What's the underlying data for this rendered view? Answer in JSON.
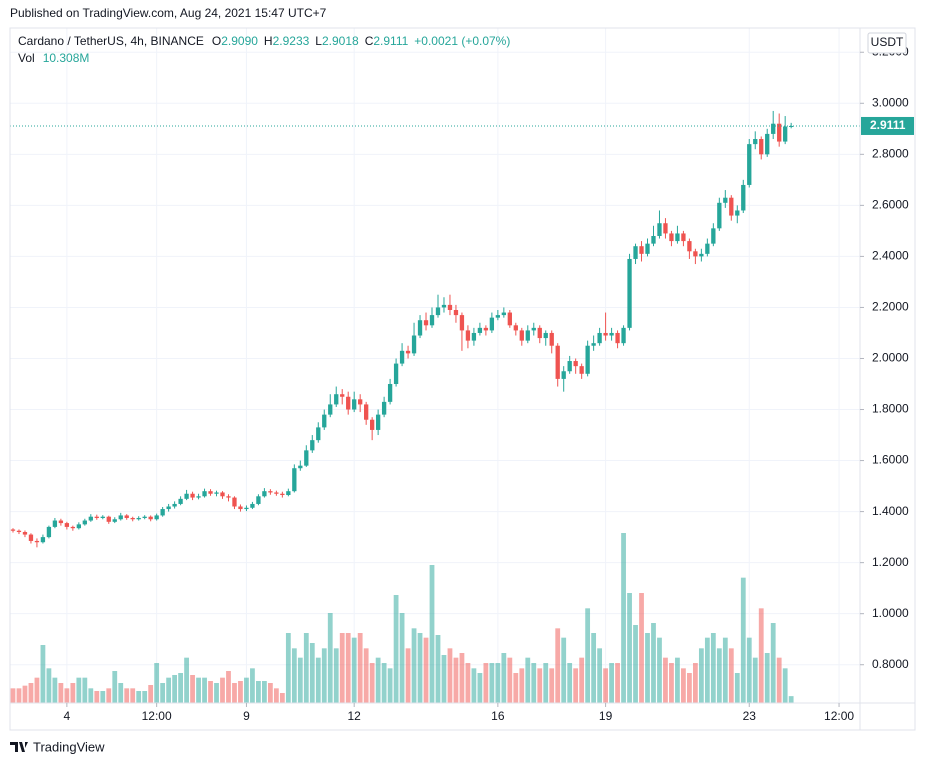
{
  "published": "Published on TradingView.com, Aug 24, 2021 15:47 UTC+7",
  "chart_data": {
    "type": "candlestick",
    "symbol": "Cardano / TetherUS, 4h, BINANCE",
    "ohlc_labels": [
      {
        "label": "O",
        "value": "2.9090"
      },
      {
        "label": "H",
        "value": "2.9233"
      },
      {
        "label": "L",
        "value": "2.9018"
      },
      {
        "label": "C",
        "value": "2.9111"
      }
    ],
    "change": "+0.0021 (+0.07%)",
    "volume_label": "Vol",
    "volume_value": "10.308M",
    "currency": "USDT",
    "open": [
      1.33,
      1.325,
      1.32,
      1.31,
      1.285,
      1.28,
      1.3,
      1.34,
      1.365,
      1.355,
      1.34,
      1.335,
      1.35,
      1.365,
      1.38,
      1.375,
      1.38,
      1.36,
      1.37,
      1.385,
      1.375,
      1.37,
      1.375,
      1.38,
      1.37,
      1.385,
      1.41,
      1.42,
      1.43,
      1.45,
      1.47,
      1.455,
      1.46,
      1.48,
      1.47,
      1.475,
      1.46,
      1.455,
      1.42,
      1.41,
      1.415,
      1.43,
      1.46,
      1.48,
      1.475,
      1.47,
      1.465,
      1.48,
      1.57,
      1.58,
      1.64,
      1.68,
      1.73,
      1.78,
      1.82,
      1.86,
      1.85,
      1.8,
      1.84,
      1.82,
      1.76,
      1.72,
      1.78,
      1.83,
      1.9,
      1.98,
      2.03,
      2.02,
      2.09,
      2.15,
      2.13,
      2.17,
      2.2,
      2.21,
      2.19,
      2.17,
      2.11,
      2.07,
      2.1,
      2.12,
      2.11,
      2.16,
      2.17,
      2.18,
      2.13,
      2.11,
      2.07,
      2.11,
      2.12,
      2.08,
      2.1,
      2.05,
      1.92,
      1.95,
      1.99,
      1.97,
      1.94,
      2.05,
      2.06,
      2.1,
      2.09,
      2.1,
      2.06,
      2.12,
      2.39,
      2.44,
      2.41,
      2.45,
      2.48,
      2.53,
      2.49,
      2.46,
      2.49,
      2.46,
      2.42,
      2.4,
      2.41,
      2.45,
      2.51,
      2.61,
      2.63,
      2.56,
      2.58,
      2.68,
      2.84,
      2.86,
      2.8,
      2.88,
      2.92,
      2.85,
      2.909
    ],
    "high": [
      1.335,
      1.33,
      1.326,
      1.315,
      1.295,
      1.31,
      1.345,
      1.375,
      1.372,
      1.36,
      1.345,
      1.358,
      1.372,
      1.39,
      1.388,
      1.386,
      1.384,
      1.378,
      1.395,
      1.39,
      1.38,
      1.382,
      1.386,
      1.385,
      1.392,
      1.418,
      1.43,
      1.44,
      1.46,
      1.485,
      1.478,
      1.47,
      1.49,
      1.488,
      1.482,
      1.48,
      1.468,
      1.46,
      1.428,
      1.424,
      1.438,
      1.468,
      1.492,
      1.488,
      1.482,
      1.478,
      1.49,
      1.585,
      1.6,
      1.66,
      1.7,
      1.75,
      1.8,
      1.86,
      1.89,
      1.88,
      1.87,
      1.87,
      1.86,
      1.83,
      1.77,
      1.8,
      1.85,
      1.92,
      2.0,
      2.06,
      2.05,
      2.14,
      2.17,
      2.18,
      2.2,
      2.25,
      2.24,
      2.25,
      2.21,
      2.18,
      2.13,
      2.12,
      2.14,
      2.13,
      2.18,
      2.19,
      2.2,
      2.19,
      2.14,
      2.12,
      2.13,
      2.14,
      2.13,
      2.11,
      2.11,
      2.06,
      1.97,
      2.01,
      2.0,
      1.98,
      2.07,
      2.09,
      2.12,
      2.18,
      2.12,
      2.11,
      2.13,
      2.41,
      2.45,
      2.46,
      2.47,
      2.52,
      2.58,
      2.55,
      2.5,
      2.52,
      2.5,
      2.47,
      2.43,
      2.43,
      2.47,
      2.53,
      2.63,
      2.66,
      2.64,
      2.6,
      2.7,
      2.86,
      2.89,
      2.87,
      2.9,
      2.97,
      2.96,
      2.95,
      2.9233
    ],
    "low": [
      1.318,
      1.312,
      1.3,
      1.275,
      1.26,
      1.275,
      1.295,
      1.335,
      1.345,
      1.33,
      1.325,
      1.33,
      1.345,
      1.36,
      1.368,
      1.37,
      1.352,
      1.355,
      1.365,
      1.368,
      1.362,
      1.365,
      1.37,
      1.362,
      1.365,
      1.38,
      1.4,
      1.412,
      1.425,
      1.445,
      1.445,
      1.448,
      1.455,
      1.462,
      1.46,
      1.45,
      1.44,
      1.41,
      1.4,
      1.402,
      1.41,
      1.425,
      1.455,
      1.466,
      1.462,
      1.455,
      1.46,
      1.475,
      1.56,
      1.575,
      1.63,
      1.67,
      1.72,
      1.77,
      1.81,
      1.82,
      1.78,
      1.79,
      1.79,
      1.74,
      1.68,
      1.7,
      1.77,
      1.82,
      1.89,
      1.97,
      2.0,
      2.01,
      2.08,
      2.11,
      2.12,
      2.16,
      2.18,
      2.17,
      2.14,
      2.03,
      2.04,
      2.05,
      2.09,
      2.09,
      2.1,
      2.15,
      2.16,
      2.12,
      2.09,
      2.05,
      2.06,
      2.09,
      2.06,
      2.05,
      2.02,
      1.89,
      1.87,
      1.94,
      1.94,
      1.92,
      1.93,
      2.03,
      2.05,
      2.07,
      2.07,
      2.04,
      2.05,
      2.11,
      2.37,
      2.38,
      2.4,
      2.44,
      2.47,
      2.47,
      2.44,
      2.45,
      2.44,
      2.39,
      2.37,
      2.38,
      2.4,
      2.44,
      2.5,
      2.59,
      2.54,
      2.53,
      2.57,
      2.67,
      2.82,
      2.78,
      2.79,
      2.86,
      2.83,
      2.84,
      2.9018
    ],
    "close": [
      1.325,
      1.32,
      1.31,
      1.285,
      1.28,
      1.3,
      1.34,
      1.365,
      1.355,
      1.34,
      1.335,
      1.35,
      1.365,
      1.38,
      1.375,
      1.38,
      1.36,
      1.37,
      1.385,
      1.375,
      1.37,
      1.375,
      1.38,
      1.37,
      1.385,
      1.41,
      1.42,
      1.43,
      1.45,
      1.47,
      1.455,
      1.46,
      1.48,
      1.47,
      1.475,
      1.46,
      1.455,
      1.42,
      1.41,
      1.415,
      1.43,
      1.46,
      1.48,
      1.475,
      1.47,
      1.465,
      1.48,
      1.57,
      1.58,
      1.64,
      1.68,
      1.73,
      1.78,
      1.82,
      1.86,
      1.85,
      1.8,
      1.84,
      1.82,
      1.76,
      1.72,
      1.78,
      1.83,
      1.9,
      1.98,
      2.03,
      2.02,
      2.09,
      2.15,
      2.13,
      2.17,
      2.2,
      2.21,
      2.19,
      2.17,
      2.11,
      2.07,
      2.1,
      2.12,
      2.11,
      2.16,
      2.17,
      2.18,
      2.13,
      2.11,
      2.07,
      2.11,
      2.12,
      2.08,
      2.1,
      2.05,
      1.92,
      1.95,
      1.99,
      1.97,
      1.94,
      2.05,
      2.06,
      2.1,
      2.09,
      2.1,
      2.06,
      2.12,
      2.39,
      2.44,
      2.41,
      2.45,
      2.48,
      2.53,
      2.49,
      2.46,
      2.49,
      2.46,
      2.42,
      2.4,
      2.41,
      2.45,
      2.51,
      2.61,
      2.63,
      2.56,
      2.58,
      2.68,
      2.84,
      2.86,
      2.8,
      2.88,
      2.92,
      2.85,
      2.909,
      2.9111
    ],
    "volume": [
      22,
      22,
      26,
      30,
      38,
      87,
      52,
      38,
      30,
      22,
      30,
      38,
      38,
      22,
      18,
      18,
      22,
      48,
      30,
      22,
      22,
      18,
      18,
      27,
      60,
      30,
      38,
      42,
      45,
      68,
      42,
      38,
      38,
      33,
      30,
      38,
      48,
      30,
      33,
      38,
      52,
      33,
      33,
      30,
      22,
      15,
      105,
      82,
      68,
      105,
      90,
      68,
      82,
      135,
      82,
      105,
      105,
      98,
      105,
      82,
      60,
      68,
      60,
      52,
      162,
      135,
      82,
      112,
      105,
      98,
      207,
      102,
      72,
      82,
      68,
      75,
      60,
      52,
      45,
      60,
      60,
      60,
      75,
      68,
      45,
      52,
      68,
      60,
      52,
      60,
      52,
      112,
      98,
      60,
      52,
      68,
      142,
      105,
      82,
      52,
      60,
      60,
      255,
      165,
      117,
      165,
      105,
      120,
      98,
      68,
      60,
      68,
      52,
      45,
      60,
      82,
      98,
      105,
      82,
      98,
      82,
      45,
      188,
      98,
      68,
      142,
      75,
      120,
      68,
      52,
      10.308
    ],
    "up_color": "#26a69a",
    "down_color": "#ef5350",
    "xlim": [
      -0.5,
      141.5
    ],
    "xticks": [
      {
        "value": 9,
        "label": "4"
      },
      {
        "value": 24,
        "label": "12:00"
      },
      {
        "value": 39,
        "label": "9"
      },
      {
        "value": 57,
        "label": "12"
      },
      {
        "value": 81,
        "label": "16"
      },
      {
        "value": 99,
        "label": "19"
      },
      {
        "value": 123,
        "label": "23"
      },
      {
        "value": 138,
        "label": "12:00"
      }
    ],
    "ylim": [
      0.65,
      3.295
    ],
    "yticks": [
      {
        "value": 0.8,
        "label": "0.8000"
      },
      {
        "value": 1.0,
        "label": "1.0000"
      },
      {
        "value": 1.2,
        "label": "1.2000"
      },
      {
        "value": 1.4,
        "label": "1.4000"
      },
      {
        "value": 1.6,
        "label": "1.6000"
      },
      {
        "value": 1.8,
        "label": "1.8000"
      },
      {
        "value": 2.0,
        "label": "2.0000"
      },
      {
        "value": 2.2,
        "label": "2.2000"
      },
      {
        "value": 2.4,
        "label": "2.4000"
      },
      {
        "value": 2.6,
        "label": "2.6000"
      },
      {
        "value": 2.8,
        "label": "2.8000"
      },
      {
        "value": 3.0,
        "label": "3.0000"
      },
      {
        "value": 3.2,
        "label": "3.2000"
      }
    ],
    "volume_lim": [
      0,
      360
    ],
    "grid": true
  },
  "footer": "TradingView"
}
